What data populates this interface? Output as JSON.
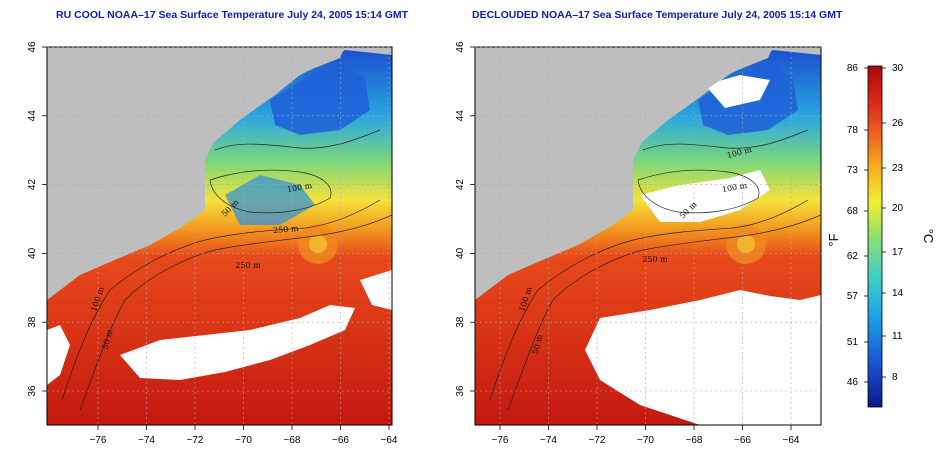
{
  "maps": [
    {
      "title": "RU COOL NOAA–17 Sea Surface Temperature July 24, 2005 15:14 GMT",
      "x_ticks": [
        "−76",
        "−74",
        "−72",
        "−70",
        "−68",
        "−66",
        "−64"
      ],
      "y_ticks": [
        "36",
        "38",
        "40",
        "42",
        "44",
        "46"
      ],
      "contour_labels": [
        "100 m",
        "50 m",
        "250 m",
        "50 m",
        "100 m",
        "250 m"
      ]
    },
    {
      "title": "DECLOUDED NOAA–17 Sea Surface Temperature July 24, 2005 15:14 GMT",
      "x_ticks": [
        "−76",
        "−74",
        "−72",
        "−70",
        "−68",
        "−66",
        "−64"
      ],
      "y_ticks": [
        "36",
        "38",
        "40",
        "42",
        "44",
        "46"
      ],
      "contour_labels": [
        "100 m",
        "50 m",
        "100 m",
        "250 m",
        "50 m",
        "100 m"
      ]
    }
  ],
  "colorbar": {
    "fahrenheit_ticks": [
      "86",
      "78",
      "73",
      "68",
      "62",
      "57",
      "51",
      "46"
    ],
    "celsius_ticks": [
      "30",
      "26",
      "23",
      "20",
      "17",
      "14",
      "11",
      "8"
    ],
    "fahrenheit_unit": "°F",
    "celsius_unit": "°C",
    "colors": [
      "#0a1a8a",
      "#1a4fd0",
      "#1aa0e8",
      "#3fd0c8",
      "#8ee070",
      "#f0f030",
      "#f8b020",
      "#f06020",
      "#d82818",
      "#a80808"
    ]
  }
}
